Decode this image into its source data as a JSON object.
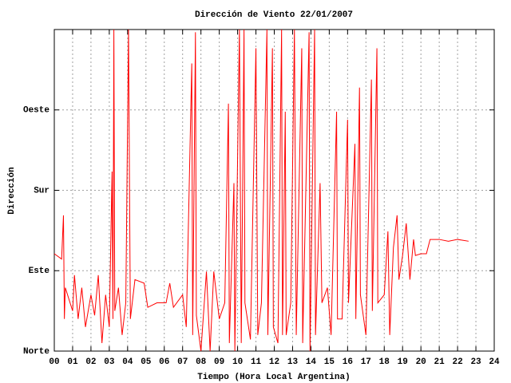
{
  "chart_data": {
    "type": "line",
    "title": "Dirección de Viento 22/01/2007",
    "x_label": "Tiempo (Hora Local Argentina)",
    "y_label": "Dirección",
    "x": [
      0,
      0.4,
      0.5,
      0.55,
      0.6,
      1.0,
      1.1,
      1.3,
      1.5,
      1.7,
      2.0,
      2.2,
      2.4,
      2.6,
      2.8,
      3.0,
      3.15,
      3.2,
      3.25,
      3.3,
      3.5,
      3.7,
      3.9,
      4.05,
      4.15,
      4.4,
      4.9,
      5.1,
      5.6,
      6.1,
      6.3,
      6.5,
      7.0,
      7.2,
      7.5,
      7.55,
      7.7,
      7.75,
      8.0,
      8.3,
      8.5,
      8.7,
      9.0,
      9.3,
      9.5,
      9.55,
      9.8,
      9.85,
      10.1,
      10.2,
      10.35,
      10.4,
      10.7,
      11.0,
      11.1,
      11.3,
      11.6,
      11.65,
      11.9,
      11.95,
      12.2,
      12.4,
      12.45,
      12.6,
      12.65,
      12.9,
      13.1,
      13.2,
      13.5,
      13.55,
      13.9,
      13.95,
      14.2,
      14.25,
      14.5,
      14.6,
      14.9,
      15.1,
      15.4,
      15.45,
      15.7,
      16.0,
      16.05,
      16.4,
      16.45,
      16.65,
      16.7,
      17.0,
      17.3,
      17.35,
      17.6,
      17.65,
      18.0,
      18.2,
      18.3,
      18.5,
      18.7,
      18.8,
      19.0,
      19.2,
      19.4,
      19.6,
      19.7,
      20.0,
      20.3,
      20.5,
      21.0,
      21.5,
      22.0,
      22.6
    ],
    "series": [
      {
        "name": "Dirección",
        "color": "#ff0000",
        "values": [
          109,
          103,
          152,
          36,
          71,
          45,
          85,
          36,
          71,
          27,
          63,
          40,
          85,
          9,
          63,
          27,
          201,
          36,
          360,
          45,
          71,
          18,
          54,
          360,
          36,
          80,
          76,
          49,
          54,
          54,
          76,
          49,
          63,
          27,
          322,
          18,
          357,
          40,
          0,
          89,
          0,
          89,
          36,
          54,
          277,
          9,
          188,
          0,
          360,
          9,
          360,
          54,
          13,
          339,
          18,
          54,
          360,
          18,
          339,
          27,
          9,
          360,
          18,
          268,
          18,
          54,
          360,
          18,
          339,
          9,
          357,
          0,
          360,
          18,
          188,
          54,
          71,
          18,
          268,
          36,
          36,
          259,
          54,
          232,
          36,
          295,
          63,
          18,
          304,
          45,
          339,
          54,
          63,
          134,
          18,
          116,
          152,
          80,
          107,
          143,
          80,
          125,
          107,
          109,
          109,
          125,
          125,
          123,
          125,
          123
        ]
      }
    ],
    "xlim": [
      0,
      24
    ],
    "xticks": [
      {
        "value": 0,
        "label": "00"
      },
      {
        "value": 1,
        "label": "01"
      },
      {
        "value": 2,
        "label": "02"
      },
      {
        "value": 3,
        "label": "03"
      },
      {
        "value": 4,
        "label": "04"
      },
      {
        "value": 5,
        "label": "05"
      },
      {
        "value": 6,
        "label": "06"
      },
      {
        "value": 7,
        "label": "07"
      },
      {
        "value": 8,
        "label": "08"
      },
      {
        "value": 9,
        "label": "09"
      },
      10,
      11,
      12,
      13,
      14,
      15,
      16,
      17,
      18,
      19,
      20,
      21,
      22,
      23,
      24
    ],
    "ylim": [
      0,
      360
    ],
    "yticks": [
      {
        "value": 0,
        "label": "Norte"
      },
      {
        "value": 90,
        "label": "Este"
      },
      {
        "value": 180,
        "label": "Sur"
      },
      {
        "value": 270,
        "label": "Oeste"
      }
    ],
    "grid": true
  }
}
